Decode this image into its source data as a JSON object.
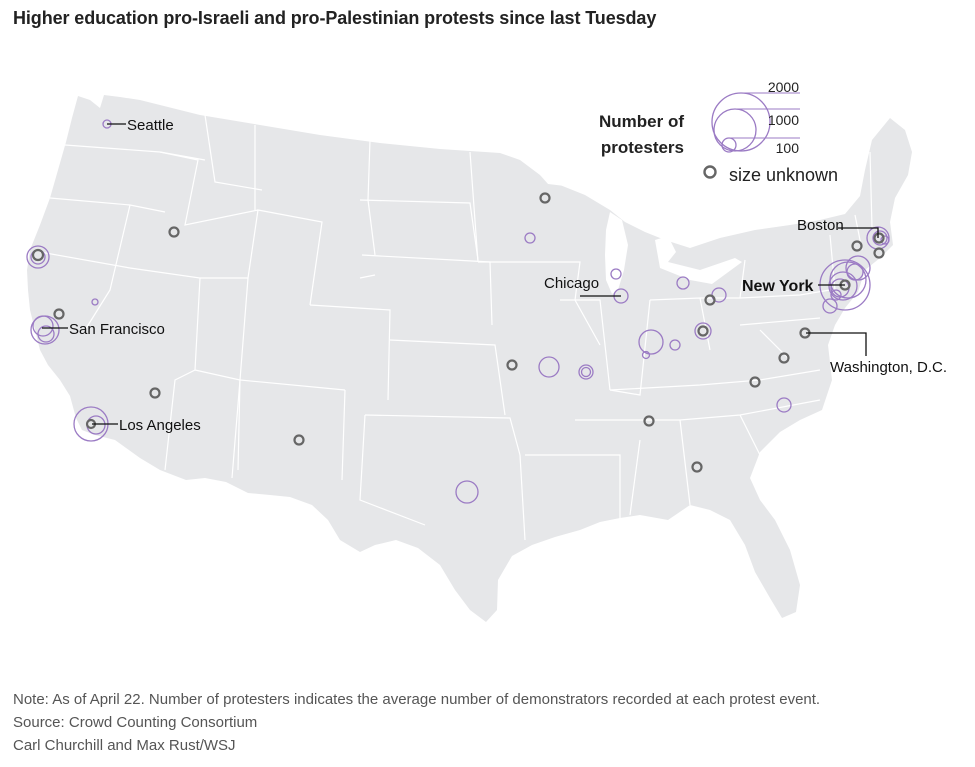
{
  "title": "Higher education pro-Israeli and pro-Palestinian protests since last Tuesday",
  "legend": {
    "title_line1": "Number of",
    "title_line2": "protesters",
    "sizes": [
      "2000",
      "1000",
      "100"
    ],
    "unknown_label": "size unknown"
  },
  "colors": {
    "land": "#e6e7e9",
    "borders": "#ffffff",
    "known_size": "#9b7bc4",
    "unknown_size": "#666666"
  },
  "cities": {
    "seattle": "Seattle",
    "san_francisco": "San Francisco",
    "los_angeles": "Los Angeles",
    "chicago": "Chicago",
    "boston": "Boston",
    "new_york": "New York",
    "washington": "Washington, D.C."
  },
  "footer": {
    "note": "Note: As of April 22. Number of protesters indicates the average number of demonstrators recorded at each protest event.",
    "source": "Source: Crowd Counting Consortium",
    "credit": "Carl Churchill and Max Rust/WSJ"
  }
}
